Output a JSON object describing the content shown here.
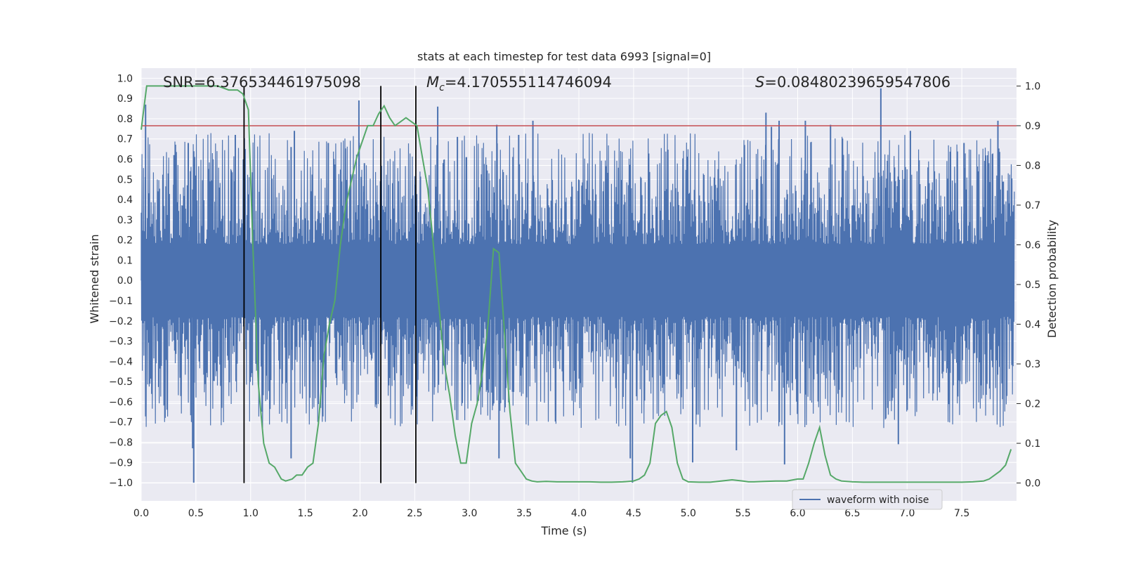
{
  "chart_data": {
    "type": "line",
    "title": "stats at each timestep for test data 6993 [signal=0]",
    "xlabel": "Time (s)",
    "ylabel_left": "Whitened strain",
    "ylabel_right": "Detection probability",
    "xlim": [
      0.0,
      8.0
    ],
    "ylim_left": [
      -1.09,
      1.05
    ],
    "ylim_right": [
      -0.045,
      1.045
    ],
    "x_ticks": [
      "0.0",
      "0.5",
      "1.0",
      "1.5",
      "2.0",
      "2.5",
      "3.0",
      "3.5",
      "4.0",
      "4.5",
      "5.0",
      "5.5",
      "6.0",
      "6.5",
      "7.0",
      "7.5"
    ],
    "x_tick_values": [
      0.0,
      0.5,
      1.0,
      1.5,
      2.0,
      2.5,
      3.0,
      3.5,
      4.0,
      4.5,
      5.0,
      5.5,
      6.0,
      6.5,
      7.0,
      7.5
    ],
    "y_ticks_left": [
      "1.0",
      "0.9",
      "0.8",
      "0.7",
      "0.6",
      "0.5",
      "0.4",
      "0.3",
      "0.2",
      "0.1",
      "0.0",
      "−0.1",
      "−0.2",
      "−0.3",
      "−0.4",
      "−0.5",
      "−0.6",
      "−0.7",
      "−0.8",
      "−0.9",
      "−1.0"
    ],
    "y_tick_values_left": [
      1.0,
      0.9,
      0.8,
      0.7,
      0.6,
      0.5,
      0.4,
      0.3,
      0.2,
      0.1,
      0.0,
      -0.1,
      -0.2,
      -0.3,
      -0.4,
      -0.5,
      -0.6,
      -0.7,
      -0.8,
      -0.9,
      -1.0
    ],
    "y_ticks_right": [
      "1.0",
      "0.9",
      "0.8",
      "0.7",
      "0.6",
      "0.5",
      "0.4",
      "0.3",
      "0.2",
      "0.1",
      "0.0"
    ],
    "y_tick_values_right": [
      1.0,
      0.9,
      0.8,
      0.7,
      0.6,
      0.5,
      0.4,
      0.3,
      0.2,
      0.1,
      0.0
    ],
    "annotations": {
      "snr": "SNR=6.376534461975098",
      "mc_symbol": "M",
      "mc_sub": "c",
      "mc_value": "=4.170555114746094",
      "s_symbol": "S",
      "s_value": "=0.08480239659547806"
    },
    "threshold": 0.9,
    "vertical_lines": [
      0.94,
      2.19,
      2.51
    ],
    "legend": {
      "label": "waveform with noise",
      "position": "lower-right"
    },
    "series": [
      {
        "name": "waveform with noise",
        "axis": "left",
        "style": "dense noise, approx. range -1.0 to 1.0",
        "spikes": [
          [
            0.04,
            0.87
          ],
          [
            0.3,
            0.62
          ],
          [
            0.43,
            0.68
          ],
          [
            0.48,
            -1.0
          ],
          [
            0.47,
            -0.83
          ],
          [
            0.86,
            0.72
          ],
          [
            1.37,
            -0.88
          ],
          [
            1.37,
            0.66
          ],
          [
            1.4,
            0.74
          ],
          [
            1.71,
            0.68
          ],
          [
            1.99,
            0.89
          ],
          [
            2.04,
            0.58
          ],
          [
            2.71,
            0.86
          ],
          [
            2.89,
            0.71
          ],
          [
            3.25,
            0.77
          ],
          [
            3.27,
            -0.88
          ],
          [
            3.45,
            0.72
          ],
          [
            3.58,
            0.79
          ],
          [
            4.49,
            -1.0
          ],
          [
            4.47,
            -0.88
          ],
          [
            5.04,
            -0.9
          ],
          [
            5.44,
            -0.84
          ],
          [
            5.71,
            0.83
          ],
          [
            5.76,
            0.76
          ],
          [
            5.83,
            0.79
          ],
          [
            5.88,
            -0.91
          ],
          [
            6.07,
            0.79
          ],
          [
            6.3,
            0.77
          ],
          [
            6.76,
            0.95
          ],
          [
            6.92,
            -0.81
          ],
          [
            7.03,
            0.74
          ],
          [
            7.52,
            0.68
          ],
          [
            7.83,
            0.79
          ]
        ]
      },
      {
        "name": "detection probability",
        "axis": "right",
        "x": [
          0.0,
          0.05,
          0.1,
          0.2,
          0.3,
          0.4,
          0.5,
          0.6,
          0.7,
          0.8,
          0.88,
          0.93,
          0.98,
          1.02,
          1.07,
          1.12,
          1.17,
          1.22,
          1.28,
          1.32,
          1.38,
          1.42,
          1.47,
          1.52,
          1.57,
          1.62,
          1.67,
          1.72,
          1.77,
          1.82,
          1.87,
          1.92,
          1.97,
          2.02,
          2.07,
          2.12,
          2.17,
          2.22,
          2.27,
          2.32,
          2.37,
          2.42,
          2.47,
          2.52,
          2.57,
          2.62,
          2.67,
          2.72,
          2.77,
          2.82,
          2.87,
          2.92,
          2.97,
          3.02,
          3.07,
          3.12,
          3.17,
          3.22,
          3.27,
          3.32,
          3.37,
          3.42,
          3.47,
          3.52,
          3.57,
          3.62,
          3.7,
          3.8,
          3.9,
          4.0,
          4.1,
          4.2,
          4.3,
          4.4,
          4.5,
          4.55,
          4.6,
          4.65,
          4.7,
          4.75,
          4.8,
          4.85,
          4.9,
          4.95,
          5.0,
          5.1,
          5.2,
          5.3,
          5.4,
          5.5,
          5.55,
          5.6,
          5.7,
          5.8,
          5.9,
          6.0,
          6.05,
          6.1,
          6.15,
          6.2,
          6.25,
          6.3,
          6.35,
          6.4,
          6.5,
          6.6,
          6.7,
          6.8,
          6.9,
          7.0,
          7.1,
          7.2,
          7.3,
          7.4,
          7.5,
          7.6,
          7.7,
          7.75,
          7.8,
          7.85,
          7.9,
          7.95
        ],
        "values": [
          0.89,
          1.0,
          1.0,
          1.0,
          1.0,
          1.0,
          1.0,
          1.0,
          1.0,
          0.99,
          0.99,
          0.98,
          0.94,
          0.6,
          0.25,
          0.1,
          0.05,
          0.04,
          0.01,
          0.005,
          0.01,
          0.02,
          0.02,
          0.04,
          0.05,
          0.15,
          0.32,
          0.4,
          0.46,
          0.6,
          0.7,
          0.76,
          0.82,
          0.86,
          0.9,
          0.9,
          0.93,
          0.95,
          0.92,
          0.9,
          0.91,
          0.92,
          0.91,
          0.9,
          0.82,
          0.74,
          0.6,
          0.45,
          0.3,
          0.22,
          0.12,
          0.05,
          0.05,
          0.15,
          0.2,
          0.28,
          0.4,
          0.59,
          0.58,
          0.38,
          0.18,
          0.05,
          0.03,
          0.01,
          0.005,
          0.003,
          0.004,
          0.003,
          0.003,
          0.003,
          0.003,
          0.002,
          0.002,
          0.003,
          0.005,
          0.01,
          0.02,
          0.05,
          0.15,
          0.17,
          0.18,
          0.14,
          0.05,
          0.01,
          0.003,
          0.002,
          0.002,
          0.005,
          0.008,
          0.005,
          0.003,
          0.003,
          0.004,
          0.005,
          0.005,
          0.01,
          0.01,
          0.05,
          0.1,
          0.14,
          0.07,
          0.02,
          0.01,
          0.005,
          0.003,
          0.002,
          0.002,
          0.002,
          0.002,
          0.002,
          0.002,
          0.002,
          0.002,
          0.002,
          0.002,
          0.003,
          0.005,
          0.01,
          0.02,
          0.03,
          0.045,
          0.085
        ]
      }
    ],
    "colors": {
      "background": "#eaeaf2",
      "grid": "#ffffff",
      "waveform": "#4c72b0",
      "probability": "#55a868",
      "threshold": "#c44e52",
      "vline": "#000000"
    }
  }
}
